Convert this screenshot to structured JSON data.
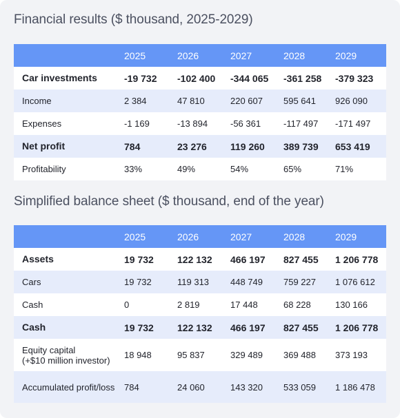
{
  "tables": [
    {
      "title": "Financial results ($ thousand, 2025-2029)",
      "columns": [
        "2025",
        "2026",
        "2027",
        "2028",
        "2029"
      ],
      "rows": [
        {
          "label": "Car investments",
          "bold": true,
          "values": [
            "-19 732",
            "-102 400",
            "-344 065",
            "-361 258",
            "-379 323"
          ]
        },
        {
          "label": "Income",
          "values": [
            "2 384",
            "47 810",
            "220 607",
            "595 641",
            "926 090"
          ]
        },
        {
          "label": "Expenses",
          "values": [
            "-1 169",
            "-13 894",
            "-56 361",
            "-117 497",
            "-171 497"
          ]
        },
        {
          "label": "Net profit",
          "bold": true,
          "values": [
            "784",
            "23 276",
            "119 260",
            "389 739",
            "653 419"
          ]
        },
        {
          "label": "Profitability",
          "values": [
            "33%",
            "49%",
            "54%",
            "65%",
            "71%"
          ]
        }
      ]
    },
    {
      "title": "Simplified balance sheet ($ thousand, end of the year)",
      "columns": [
        "2025",
        "2026",
        "2027",
        "2028",
        "2029"
      ],
      "rows": [
        {
          "label": "Assets",
          "bold": true,
          "values": [
            "19 732",
            "122 132",
            "466 197",
            "827 455",
            "1 206 778"
          ]
        },
        {
          "label": "Cars",
          "values": [
            "19 732",
            "119 313",
            "448 749",
            "759 227",
            "1 076 612"
          ]
        },
        {
          "label": "Cash",
          "values": [
            "0",
            "2 819",
            "17 448",
            "68 228",
            "130 166"
          ]
        },
        {
          "label": "Cash",
          "bold": true,
          "values": [
            "19 732",
            "122 132",
            "466 197",
            "827 455",
            "1 206 778"
          ]
        },
        {
          "label": "Equity capital\n(+$10 million investor)",
          "values": [
            "18 948",
            "95 837",
            "329 489",
            "369 488",
            "373 193"
          ]
        },
        {
          "label": "Accumulated profit/loss",
          "values": [
            "784",
            "24 060",
            "143 320",
            "533 059",
            "1 186 478"
          ]
        }
      ]
    }
  ]
}
